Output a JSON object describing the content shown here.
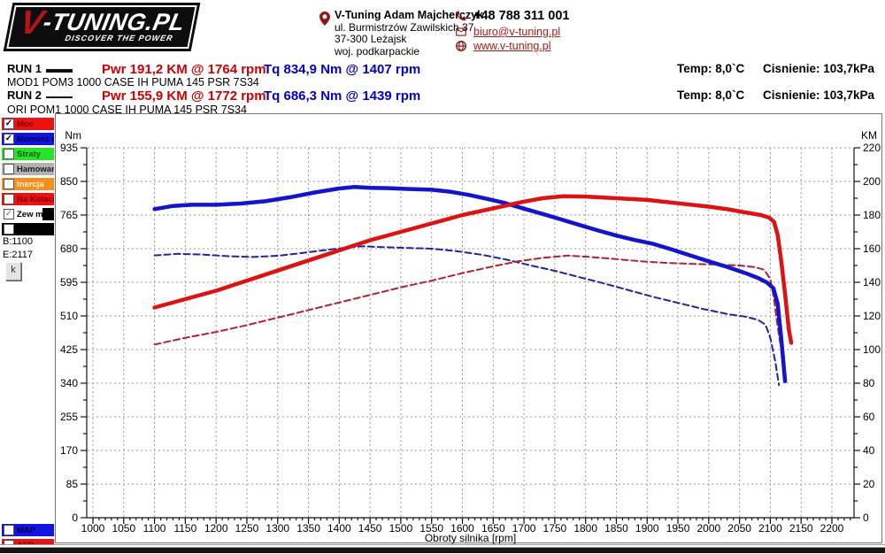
{
  "header": {
    "logo": {
      "v": "V",
      "rest": "-TUNING.PL",
      "tagline": "DISCOVER THE POWER"
    },
    "address": {
      "name": "V-Tuning Adam Majcherczyk",
      "line1": "ul. Burmistrzów Zawilskich 37",
      "line2": "37-300 Leżajsk",
      "line3": "woj. podkarpackie"
    },
    "phone": "+48 788 311 001",
    "email": "biuro@v-tuning.pl",
    "website": "www.v-tuning.pl"
  },
  "runs": [
    {
      "label": "RUN 1",
      "power": "Pwr 191,2 KM @ 1764 rpm",
      "torque": "Tq 834,9 Nm @ 1407 rpm",
      "temp": "Temp: 8,0`C",
      "pressure": "Cisnienie: 103,7kPa",
      "desc": "MOD1 POM3 1000 CASE IH PUMA 145 PSR 7S34"
    },
    {
      "label": "RUN 2",
      "power": "Pwr 155,9 KM @ 1772 rpm",
      "torque": "Tq 686,3 Nm @ 1439 rpm",
      "temp": "Temp: 8,0`C",
      "pressure": "Cisnienie: 103,7kPa",
      "desc": "ORI POM1 1000 CASE IH PUMA 145 PSR 7S34"
    }
  ],
  "legend": {
    "items": [
      {
        "label": "Moc",
        "bg": "#ee1111",
        "text_color": "#7a0505",
        "checked": true
      },
      {
        "label": "Moment obr",
        "bg": "#1414e0",
        "text_color": "#00004f",
        "checked": true
      },
      {
        "label": "Straty",
        "bg": "#27e527",
        "text_color": "#0a570a",
        "checked": false
      },
      {
        "label": "Hamowana",
        "bg": "#b2b2b2",
        "text_color": "#1d1d1d",
        "checked": false
      },
      {
        "label": "Inercja",
        "bg": "#f98f1b",
        "text_color": "#fdf3e2",
        "checked": false
      },
      {
        "label": "Na Kolach",
        "bg": "#ee1111",
        "text_color": "#7a0505",
        "checked": false
      },
      {
        "label": "Zew moc str",
        "bg": "#ffffff",
        "bg2": "#000000",
        "text_color": "#000000",
        "checked": true,
        "check_gray": true
      },
      {
        "label": "",
        "bg": "#000000",
        "text_color": "#ffffff",
        "checked": false
      }
    ],
    "bottom_items": [
      {
        "label": "MAP",
        "bg": "#1414e0",
        "text_color": "#00004f",
        "checked": false
      },
      {
        "label": "AFR",
        "bg": "#ee1111",
        "text_color": "#7a0505",
        "checked": false
      }
    ],
    "begin": "B:1100",
    "end": "E:2117",
    "k_button": "k"
  },
  "chart_data": {
    "type": "line",
    "title": "",
    "xlabel": "Obroty silnika [rpm]",
    "x_axis": {
      "min": 1000,
      "max": 2200,
      "step": 50,
      "minor_step": 10,
      "axis_end_value": 2236
    },
    "y_left": {
      "label": "Nm",
      "min": 0,
      "max": 935,
      "step": 85
    },
    "y_right": {
      "label": "KM",
      "min": 0,
      "max": 220,
      "step": 20
    },
    "grid": true,
    "series": [
      {
        "key": "torque_ori",
        "name": "Moment obrotowy ORI (RUN 2)",
        "axis": "left",
        "color": "#24249a",
        "width": 2,
        "dash": "7 4",
        "points": [
          [
            1100,
            663
          ],
          [
            1140,
            667
          ],
          [
            1180,
            665
          ],
          [
            1220,
            661
          ],
          [
            1260,
            659
          ],
          [
            1300,
            662
          ],
          [
            1340,
            669
          ],
          [
            1380,
            677
          ],
          [
            1420,
            684
          ],
          [
            1439,
            686
          ],
          [
            1470,
            684
          ],
          [
            1510,
            682
          ],
          [
            1550,
            680
          ],
          [
            1590,
            674
          ],
          [
            1630,
            665
          ],
          [
            1670,
            653
          ],
          [
            1710,
            638
          ],
          [
            1750,
            624
          ],
          [
            1790,
            608
          ],
          [
            1830,
            592
          ],
          [
            1870,
            575
          ],
          [
            1910,
            558
          ],
          [
            1950,
            543
          ],
          [
            1990,
            528
          ],
          [
            2030,
            515
          ],
          [
            2060,
            508
          ],
          [
            2080,
            500
          ],
          [
            2092,
            488
          ],
          [
            2100,
            455
          ],
          [
            2108,
            395
          ],
          [
            2114,
            335
          ]
        ]
      },
      {
        "key": "power_ori",
        "name": "Moc ORI (RUN 2)",
        "axis": "right",
        "color": "#b02335",
        "width": 2,
        "dash": "7 4",
        "points": [
          [
            1100,
            103
          ],
          [
            1150,
            107
          ],
          [
            1200,
            110.5
          ],
          [
            1250,
            114.5
          ],
          [
            1300,
            119
          ],
          [
            1350,
            123.5
          ],
          [
            1400,
            128
          ],
          [
            1450,
            132.5
          ],
          [
            1500,
            137
          ],
          [
            1550,
            141
          ],
          [
            1600,
            145.5
          ],
          [
            1650,
            149.5
          ],
          [
            1690,
            152.5
          ],
          [
            1730,
            154.5
          ],
          [
            1772,
            155.9
          ],
          [
            1810,
            155
          ],
          [
            1850,
            153.8
          ],
          [
            1890,
            152.5
          ],
          [
            1930,
            151.6
          ],
          [
            1970,
            151
          ],
          [
            2010,
            150.6
          ],
          [
            2050,
            150
          ],
          [
            2075,
            149
          ],
          [
            2090,
            147.5
          ],
          [
            2100,
            142
          ],
          [
            2106,
            130
          ],
          [
            2111,
            116
          ],
          [
            2116,
            104
          ]
        ]
      },
      {
        "key": "torque_mod",
        "name": "Moment obrotowy MOD (RUN 1)",
        "axis": "left",
        "color": "#1414cc",
        "width": 4.5,
        "dash": null,
        "points": [
          [
            1100,
            780
          ],
          [
            1130,
            788
          ],
          [
            1160,
            791
          ],
          [
            1200,
            791
          ],
          [
            1240,
            794
          ],
          [
            1280,
            800
          ],
          [
            1320,
            810
          ],
          [
            1360,
            822
          ],
          [
            1400,
            832
          ],
          [
            1425,
            836
          ],
          [
            1450,
            834
          ],
          [
            1480,
            833
          ],
          [
            1510,
            831
          ],
          [
            1550,
            829
          ],
          [
            1580,
            824
          ],
          [
            1610,
            816
          ],
          [
            1640,
            806
          ],
          [
            1670,
            795
          ],
          [
            1700,
            781
          ],
          [
            1730,
            768
          ],
          [
            1760,
            754
          ],
          [
            1790,
            740
          ],
          [
            1820,
            726
          ],
          [
            1850,
            713
          ],
          [
            1880,
            702
          ],
          [
            1910,
            692
          ],
          [
            1940,
            678
          ],
          [
            1970,
            663
          ],
          [
            2000,
            648
          ],
          [
            2030,
            634
          ],
          [
            2060,
            618
          ],
          [
            2080,
            606
          ],
          [
            2095,
            594
          ],
          [
            2105,
            580
          ],
          [
            2112,
            540
          ],
          [
            2118,
            450
          ],
          [
            2124,
            345
          ]
        ]
      },
      {
        "key": "power_mod",
        "name": "Moc MOD (RUN 1)",
        "axis": "right",
        "color": "#dd1212",
        "width": 4.5,
        "dash": null,
        "points": [
          [
            1100,
            125
          ],
          [
            1150,
            130
          ],
          [
            1200,
            135
          ],
          [
            1250,
            141
          ],
          [
            1300,
            147
          ],
          [
            1350,
            153
          ],
          [
            1400,
            159
          ],
          [
            1450,
            165
          ],
          [
            1500,
            170
          ],
          [
            1550,
            175
          ],
          [
            1600,
            180
          ],
          [
            1650,
            184
          ],
          [
            1700,
            188
          ],
          [
            1730,
            190
          ],
          [
            1764,
            191.2
          ],
          [
            1800,
            191
          ],
          [
            1850,
            190
          ],
          [
            1900,
            189
          ],
          [
            1950,
            187
          ],
          [
            2000,
            185
          ],
          [
            2030,
            183.5
          ],
          [
            2060,
            181.5
          ],
          [
            2085,
            180
          ],
          [
            2098,
            178.5
          ],
          [
            2106,
            176
          ],
          [
            2112,
            168
          ],
          [
            2118,
            152
          ],
          [
            2124,
            133
          ],
          [
            2130,
            112
          ],
          [
            2134,
            104
          ]
        ]
      }
    ]
  }
}
